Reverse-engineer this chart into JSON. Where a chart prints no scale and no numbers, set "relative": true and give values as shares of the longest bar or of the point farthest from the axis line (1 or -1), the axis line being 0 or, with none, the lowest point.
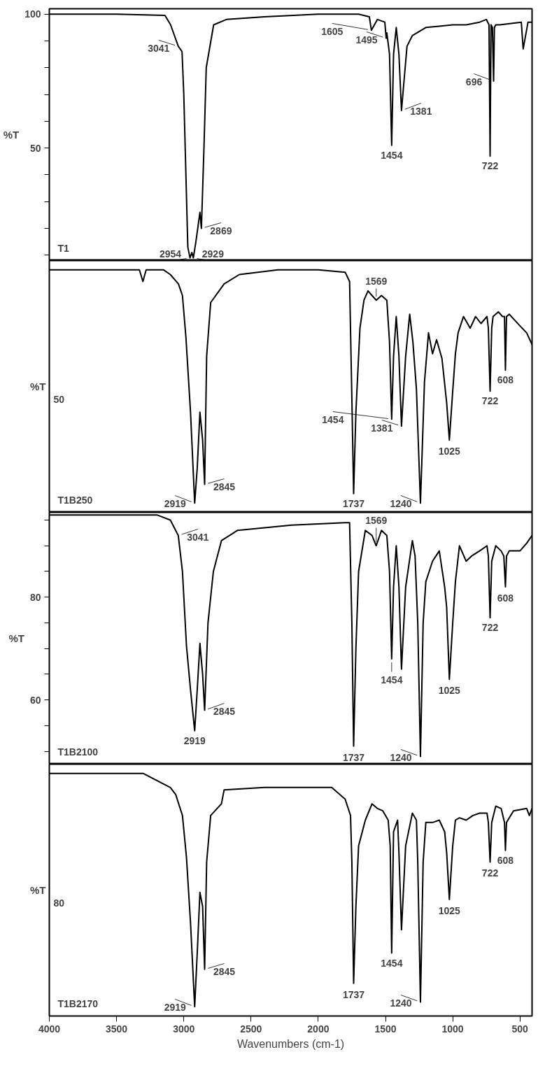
{
  "chart_data": [
    {
      "type": "line",
      "ylabel": "%T",
      "xlim": [
        4000,
        410
      ],
      "ylim": [
        8,
        102
      ],
      "tick_labels": "y",
      "yticks": [
        {
          "value": 100,
          "label": "100"
        },
        {
          "value": 90,
          "label": null
        },
        {
          "value": 80,
          "label": null
        },
        {
          "value": 70,
          "label": null
        },
        {
          "value": 60,
          "label": null
        },
        {
          "value": 50,
          "label": "50"
        },
        {
          "value": 40,
          "label": null
        },
        {
          "value": 30,
          "label": null
        },
        {
          "value": 20,
          "label": null
        },
        {
          "value": 10,
          "label": null
        }
      ],
      "series": [
        {
          "name": "T1",
          "color": "#000000",
          "x": [
            410,
            440,
            476,
            490,
            650,
            680,
            690,
            696,
            705,
            715,
            722,
            730,
            750,
            800,
            900,
            1000,
            1100,
            1200,
            1300,
            1340,
            1381,
            1400,
            1420,
            1440,
            1454,
            1470,
            1490,
            1495,
            1505,
            1560,
            1605,
            1620,
            1700,
            2000,
            2400,
            2683,
            2778,
            2833,
            2850,
            2869,
            2880,
            2910,
            2929,
            2940,
            2954,
            2970,
            3000,
            3013,
            3041,
            3098,
            3140,
            3500,
            4000
          ],
          "values": [
            97,
            97,
            87,
            97,
            96,
            96,
            95,
            75,
            95,
            96,
            47,
            96,
            98,
            97,
            96,
            96,
            95.5,
            95,
            92,
            88,
            64,
            85,
            95,
            85,
            51,
            85,
            93,
            91,
            97,
            98,
            94,
            99,
            100,
            100,
            99,
            98,
            96,
            80,
            50,
            20,
            26,
            15,
            9,
            11,
            9,
            13,
            70,
            86,
            88,
            96,
            99.5,
            100,
            100
          ]
        }
      ],
      "annotations": [
        {
          "text": "696",
          "x": 696,
          "y": 75
        },
        {
          "text": "722",
          "x": 722,
          "y": 47
        },
        {
          "text": "1381",
          "x": 1381,
          "y": 64
        },
        {
          "text": "1454",
          "x": 1454,
          "y": 51
        },
        {
          "text": "1495",
          "x": 1495,
          "y": 91
        },
        {
          "text": "1605",
          "x": 1605,
          "y": 94
        },
        {
          "text": "2869",
          "x": 2869,
          "y": 20
        },
        {
          "text": "2929",
          "x": 2929,
          "y": 9
        },
        {
          "text": "2954",
          "x": 2954,
          "y": 9
        },
        {
          "text": "3041",
          "x": 3041,
          "y": 88
        }
      ]
    },
    {
      "type": "line",
      "ylabel": "%T",
      "xlim": [
        4000,
        410
      ],
      "relative": true,
      "tick_labels": false,
      "series": [
        {
          "name": "T1B250",
          "color": "#000000",
          "x": [
            410,
            450,
            500,
            580,
            600,
            608,
            615,
            630,
            660,
            700,
            710,
            722,
            735,
            745,
            790,
            830,
            870,
            920,
            960,
            980,
            1000,
            1025,
            1045,
            1080,
            1120,
            1150,
            1180,
            1210,
            1240,
            1270,
            1296,
            1320,
            1350,
            1381,
            1400,
            1420,
            1440,
            1454,
            1470,
            1490,
            1530,
            1569,
            1600,
            1630,
            1660,
            1690,
            1720,
            1737,
            1750,
            1767,
            1800,
            2000,
            2300,
            2587,
            2700,
            2800,
            2830,
            2845,
            2860,
            2880,
            2900,
            2919,
            2950,
            2984,
            3010,
            3040,
            3100,
            3150,
            3280,
            3304,
            3330,
            3600,
            4000
          ],
          "values": [
            0.68,
            0.73,
            0.76,
            0.81,
            0.8,
            0.57,
            0.8,
            0.8,
            0.82,
            0.8,
            0.75,
            0.48,
            0.75,
            0.8,
            0.77,
            0.8,
            0.75,
            0.8,
            0.73,
            0.64,
            0.48,
            0.27,
            0.43,
            0.62,
            0.7,
            0.64,
            0.73,
            0.52,
            0,
            0.49,
            0.69,
            0.81,
            0.63,
            0.33,
            0.63,
            0.8,
            0.63,
            0.36,
            0.69,
            0.87,
            0.89,
            0.87,
            0.89,
            0.91,
            0.87,
            0.75,
            0.39,
            0.04,
            0.45,
            0.95,
            0.99,
            1,
            1,
            0.98,
            0.94,
            0.86,
            0.63,
            0.08,
            0.27,
            0.39,
            0.15,
            0,
            0.39,
            0.71,
            0.89,
            0.94,
            0.98,
            1,
            1,
            0.95,
            1,
            1,
            1
          ]
        }
      ],
      "annotations": [
        {
          "text": "608",
          "x": 608,
          "y": 0.57
        },
        {
          "text": "722",
          "x": 722,
          "y": 0.48
        },
        {
          "text": "1025",
          "x": 1025,
          "y": 0.27
        },
        {
          "text": "1240",
          "x": 1240,
          "y": 0
        },
        {
          "text": "1381",
          "x": 1381,
          "y": 0.33
        },
        {
          "text": "1454",
          "x": 1454,
          "y": 0.36
        },
        {
          "text": "1569",
          "x": 1569,
          "y": 0.87
        },
        {
          "text": "1737",
          "x": 1737,
          "y": 0.04
        },
        {
          "text": "2845",
          "x": 2845,
          "y": 0.08
        },
        {
          "text": "2919",
          "x": 2919,
          "y": 0
        },
        "50"
      ]
    },
    {
      "type": "line",
      "ylabel": "%T",
      "xlim": [
        4000,
        410
      ],
      "ylim": [
        47.5,
        96.5
      ],
      "tick_labels": "y",
      "yticks": [
        {
          "value": 95,
          "label": null
        },
        {
          "value": 90,
          "label": null
        },
        {
          "value": 85,
          "label": null
        },
        {
          "value": 80,
          "label": "80"
        },
        {
          "value": 75,
          "label": null
        },
        {
          "value": 70,
          "label": null
        },
        {
          "value": 65,
          "label": null
        },
        {
          "value": 60,
          "label": "60"
        },
        {
          "value": 55,
          "label": null
        },
        {
          "value": 50,
          "label": null
        }
      ],
      "series": [
        {
          "name": "T1B2100",
          "color": "#000000",
          "x": [
            410,
            450,
            500,
            580,
            600,
            608,
            620,
            640,
            680,
            710,
            722,
            735,
            745,
            800,
            860,
            900,
            950,
            980,
            1000,
            1025,
            1045,
            1060,
            1100,
            1150,
            1200,
            1220,
            1240,
            1260,
            1280,
            1300,
            1350,
            1381,
            1400,
            1420,
            1440,
            1454,
            1470,
            1490,
            1530,
            1569,
            1600,
            1650,
            1700,
            1720,
            1737,
            1750,
            1767,
            1800,
            2200,
            2600,
            2720,
            2780,
            2820,
            2845,
            2860,
            2880,
            2900,
            2919,
            2950,
            2980,
            3010,
            3041,
            3100,
            3200,
            4000
          ],
          "values": [
            92,
            90.5,
            89,
            89,
            88,
            82,
            88,
            89,
            90,
            87,
            76,
            88,
            90,
            89,
            88,
            87,
            90,
            83,
            75,
            64,
            78,
            82,
            89,
            87,
            83,
            75,
            49,
            75,
            88,
            91,
            82,
            66,
            82,
            90,
            82,
            68,
            85,
            92,
            93,
            90,
            92,
            93,
            85,
            70,
            51,
            75,
            94.5,
            94.5,
            94,
            93,
            91,
            85,
            75,
            58,
            65,
            71,
            62,
            54,
            62,
            70.5,
            85,
            92,
            95,
            96,
            96
          ]
        }
      ],
      "annotations": [
        {
          "text": "608",
          "x": 608,
          "y": 82
        },
        {
          "text": "722",
          "x": 722,
          "y": 76
        },
        {
          "text": "1025",
          "x": 1025,
          "y": 64
        },
        {
          "text": "1240",
          "x": 1240,
          "y": 49
        },
        {
          "text": "1454",
          "x": 1454,
          "y": 68
        },
        {
          "text": "1569",
          "x": 1569,
          "y": 90
        },
        {
          "text": "1737",
          "x": 1737,
          "y": 51
        },
        {
          "text": "2845",
          "x": 2845,
          "y": 58
        },
        {
          "text": "2919",
          "x": 2919,
          "y": 54
        },
        {
          "text": "3041",
          "x": 3041,
          "y": 92
        }
      ]
    },
    {
      "type": "line",
      "ylabel": "%T",
      "xlabel": "Wavenumbers (cm-1)",
      "xlim": [
        4000,
        410
      ],
      "relative": true,
      "tick_labels": "x",
      "xticks": [
        500,
        1000,
        1500,
        2000,
        2500,
        3000,
        3500,
        4000
      ],
      "series": [
        {
          "name": "T1B2170",
          "color": "#000000",
          "x": [
            410,
            430,
            450,
            548,
            600,
            608,
            615,
            640,
            680,
            710,
            722,
            735,
            745,
            800,
            850,
            900,
            950,
            980,
            1000,
            1025,
            1045,
            1060,
            1100,
            1150,
            1200,
            1220,
            1240,
            1260,
            1270,
            1300,
            1350,
            1381,
            1400,
            1410,
            1440,
            1454,
            1465,
            1480,
            1520,
            1560,
            1600,
            1650,
            1700,
            1720,
            1737,
            1750,
            1760,
            1800,
            1900,
            2400,
            2700,
            2720,
            2800,
            2830,
            2845,
            2860,
            2880,
            2900,
            2919,
            2950,
            2980,
            3010,
            3060,
            3100,
            3300,
            4000
          ],
          "values": [
            0.85,
            0.82,
            0.85,
            0.84,
            0.79,
            0.67,
            0.79,
            0.85,
            0.86,
            0.79,
            0.62,
            0.79,
            0.83,
            0.83,
            0.82,
            0.8,
            0.81,
            0.8,
            0.69,
            0.46,
            0.66,
            0.75,
            0.8,
            0.79,
            0.79,
            0.62,
            0.02,
            0.62,
            0.8,
            0.83,
            0.69,
            0.33,
            0.66,
            0.8,
            0.75,
            0.23,
            0.69,
            0.8,
            0.84,
            0.85,
            0.87,
            0.8,
            0.69,
            0.43,
            0.1,
            0.62,
            0.82,
            0.89,
            0.94,
            0.94,
            0.93,
            0.87,
            0.82,
            0.62,
            0.16,
            0.43,
            0.49,
            0.23,
            0,
            0.36,
            0.64,
            0.82,
            0.91,
            0.94,
            1,
            1
          ]
        }
      ],
      "annotations": [
        {
          "text": "608",
          "x": 608,
          "y": 0.67
        },
        {
          "text": "722",
          "x": 722,
          "y": 0.62
        },
        {
          "text": "1025",
          "x": 1025,
          "y": 0.46
        },
        {
          "text": "1240",
          "x": 1240,
          "y": 0.02
        },
        {
          "text": "1454",
          "x": 1454,
          "y": 0.23
        },
        {
          "text": "1737",
          "x": 1737,
          "y": 0.1
        },
        {
          "text": "2845",
          "x": 2845,
          "y": 0.16
        },
        {
          "text": "2919",
          "x": 2919,
          "y": 0
        },
        "80"
      ]
    }
  ]
}
